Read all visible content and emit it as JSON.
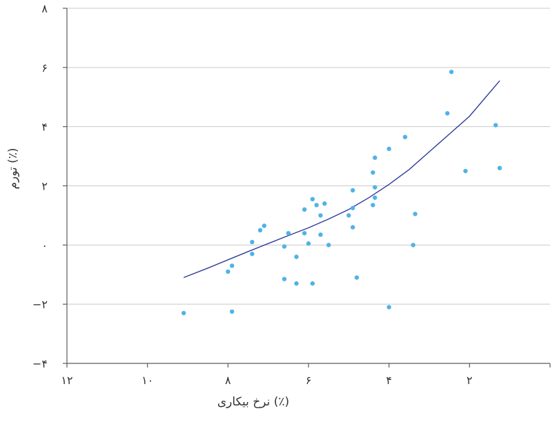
{
  "chart_data": {
    "type": "scatter",
    "title": "",
    "xlabel": "نرخ بیکاری (٪)",
    "ylabel": "تورم (٪)",
    "x_reversed": true,
    "xlim": [
      12.0,
      0.0
    ],
    "ylim": [
      -4,
      8
    ],
    "grid": "horizontal",
    "x_ticks": [
      12,
      10,
      8,
      6,
      4,
      2
    ],
    "x_tick_labels": [
      "۱۲",
      "۱۰",
      "۸",
      "۶",
      "۴",
      "۲"
    ],
    "y_ticks": [
      -4,
      -2,
      0,
      2,
      4,
      6,
      8
    ],
    "y_tick_labels": [
      "−۴",
      "−۲",
      "۰",
      "۲",
      "۴",
      "۶",
      "۸"
    ],
    "colors": {
      "points": "#4fb3e6",
      "trend": "#2e3a9a",
      "grid": "#c9c9c9",
      "axis": "#5a5a5a"
    },
    "series": [
      {
        "type": "scatter",
        "points": [
          [
            9.1,
            -2.3
          ],
          [
            8.0,
            -0.9
          ],
          [
            7.9,
            -0.7
          ],
          [
            7.9,
            -2.25
          ],
          [
            7.4,
            0.1
          ],
          [
            7.4,
            -0.3
          ],
          [
            7.2,
            0.5
          ],
          [
            7.1,
            0.65
          ],
          [
            6.6,
            -0.05
          ],
          [
            6.6,
            -1.15
          ],
          [
            6.5,
            0.4
          ],
          [
            6.3,
            -1.3
          ],
          [
            6.3,
            -0.4
          ],
          [
            6.1,
            1.2
          ],
          [
            6.1,
            0.4
          ],
          [
            6.0,
            0.05
          ],
          [
            5.9,
            1.55
          ],
          [
            5.9,
            -1.3
          ],
          [
            5.8,
            1.35
          ],
          [
            5.7,
            1.0
          ],
          [
            5.7,
            0.35
          ],
          [
            5.6,
            1.4
          ],
          [
            5.5,
            0.0
          ],
          [
            5.0,
            1.0
          ],
          [
            4.9,
            1.85
          ],
          [
            4.9,
            1.25
          ],
          [
            4.9,
            0.6
          ],
          [
            4.8,
            -1.1
          ],
          [
            4.4,
            2.45
          ],
          [
            4.35,
            2.95
          ],
          [
            4.35,
            1.95
          ],
          [
            4.35,
            1.6
          ],
          [
            4.4,
            1.35
          ],
          [
            4.0,
            3.25
          ],
          [
            4.0,
            -2.1
          ],
          [
            3.6,
            3.65
          ],
          [
            3.4,
            0.0
          ],
          [
            3.35,
            1.05
          ],
          [
            2.55,
            4.45
          ],
          [
            2.45,
            5.85
          ],
          [
            2.1,
            2.5
          ],
          [
            1.35,
            4.05
          ],
          [
            1.25,
            2.6
          ]
        ]
      },
      {
        "type": "line",
        "points": [
          [
            9.1,
            -1.1
          ],
          [
            8.5,
            -0.78
          ],
          [
            8.0,
            -0.5
          ],
          [
            7.5,
            -0.22
          ],
          [
            7.0,
            0.05
          ],
          [
            6.5,
            0.32
          ],
          [
            6.0,
            0.58
          ],
          [
            5.5,
            0.88
          ],
          [
            5.0,
            1.2
          ],
          [
            4.5,
            1.6
          ],
          [
            4.0,
            2.05
          ],
          [
            3.5,
            2.55
          ],
          [
            3.0,
            3.15
          ],
          [
            2.5,
            3.75
          ],
          [
            2.0,
            4.35
          ],
          [
            1.25,
            5.55
          ]
        ]
      }
    ]
  }
}
